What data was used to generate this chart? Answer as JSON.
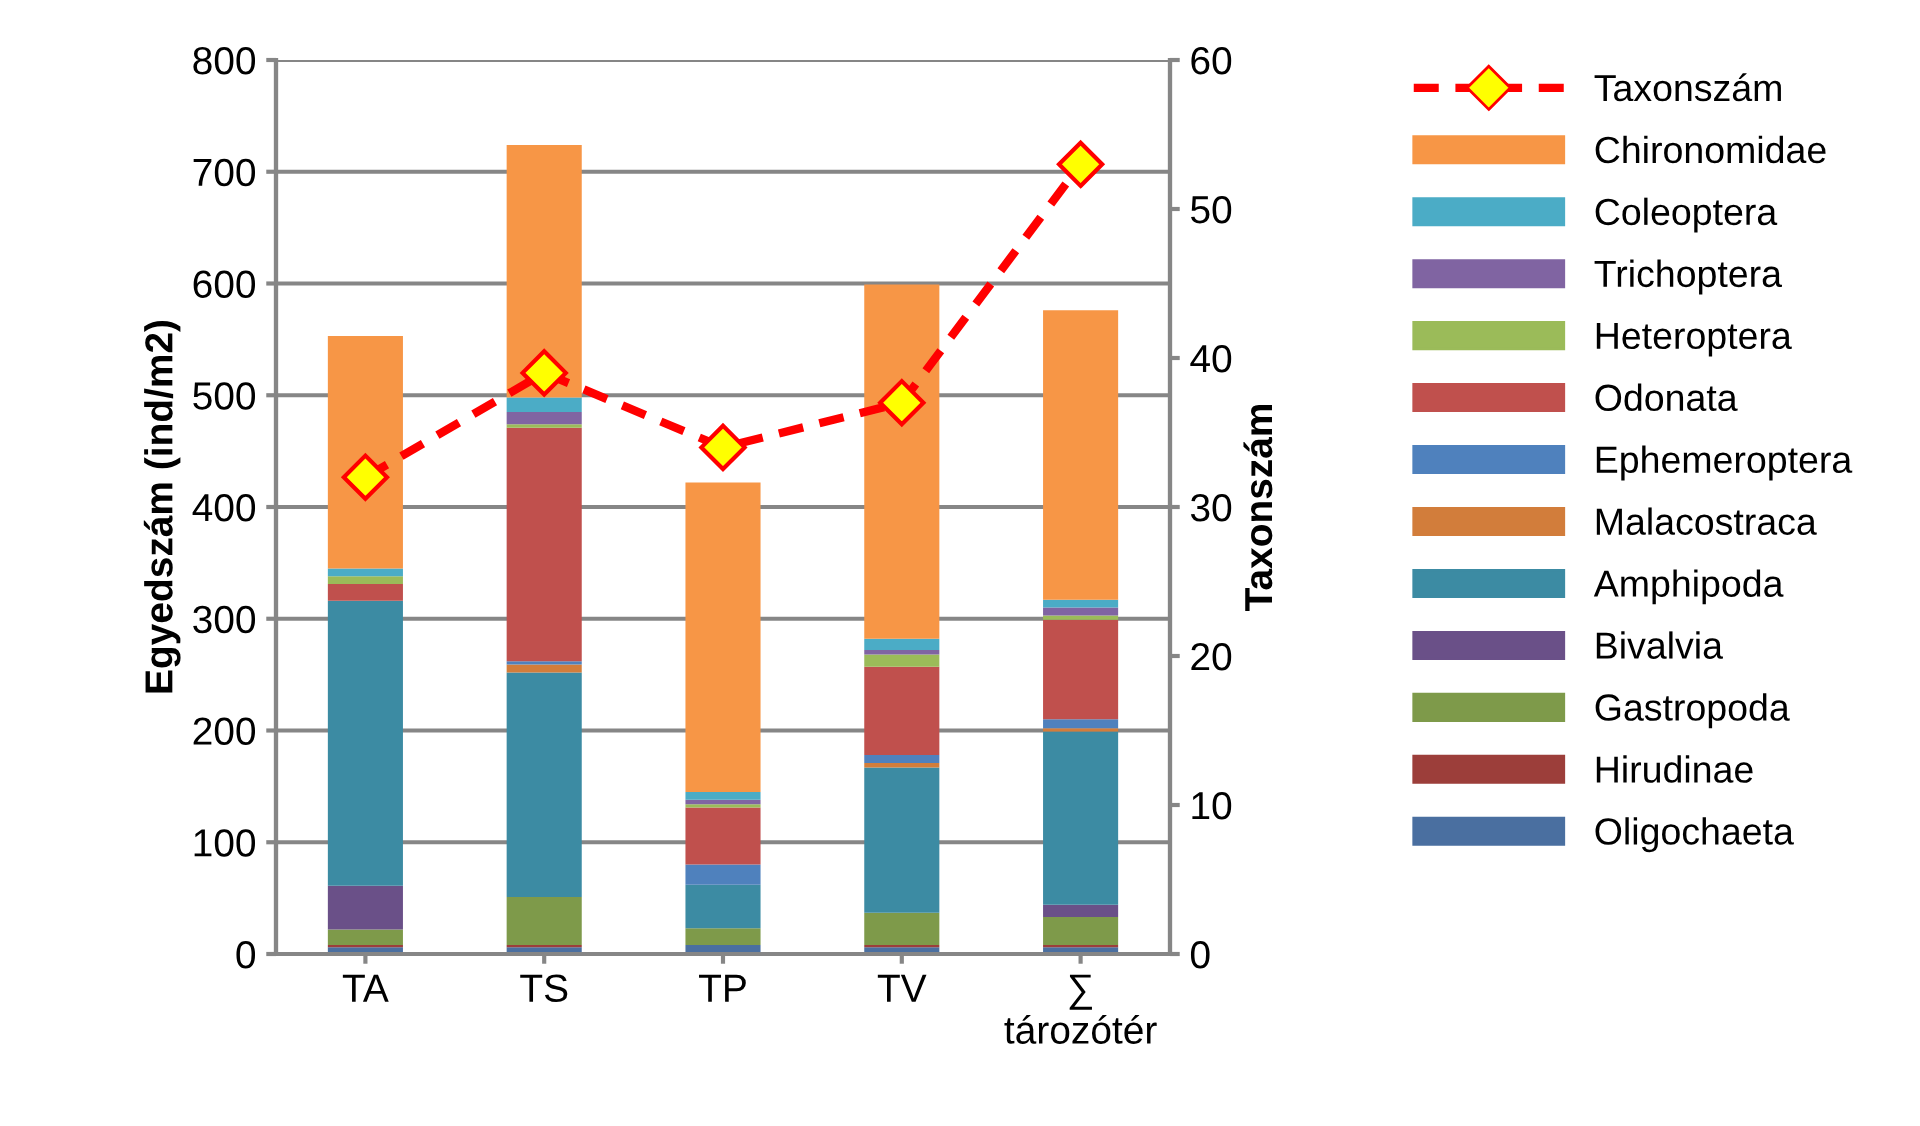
{
  "chart_data": {
    "type": "bar",
    "stacked": true,
    "ylabel": "Egyedszám (ind/m2)",
    "y2label": "Taxonszám",
    "categories": [
      "TA",
      "TS",
      "TP",
      "TV",
      "∑\ntározótér"
    ],
    "ylim": [
      0,
      800
    ],
    "yticks": [
      0,
      100,
      200,
      300,
      400,
      500,
      600,
      700,
      800
    ],
    "y2lim": [
      0,
      60
    ],
    "y2ticks": [
      0,
      10,
      20,
      30,
      40,
      50,
      60
    ],
    "grid": "y",
    "legend": "right",
    "series": [
      {
        "name": "Oligochaeta",
        "color": "#4a6fa0",
        "values": [
          6,
          6,
          8,
          6,
          6
        ]
      },
      {
        "name": "Hirudinae",
        "color": "#9c3e3a",
        "values": [
          2,
          2,
          0,
          2,
          2
        ]
      },
      {
        "name": "Gastropoda",
        "color": "#7e9a4a",
        "values": [
          14,
          43,
          15,
          29,
          25
        ]
      },
      {
        "name": "Bivalvia",
        "color": "#6a5088",
        "values": [
          39,
          0,
          0,
          0,
          11
        ]
      },
      {
        "name": "Amphipoda",
        "color": "#3c8ba3",
        "values": [
          255,
          201,
          39,
          130,
          155
        ]
      },
      {
        "name": "Malacostraca",
        "color": "#d27d3b",
        "values": [
          0,
          7,
          0,
          4,
          3
        ]
      },
      {
        "name": "Ephemeroptera",
        "color": "#4f81bd",
        "values": [
          0,
          3,
          18,
          7,
          8
        ]
      },
      {
        "name": "Odonata",
        "color": "#c0504d",
        "values": [
          15,
          209,
          51,
          79,
          89
        ]
      },
      {
        "name": "Heteroptera",
        "color": "#9bbb59",
        "values": [
          7,
          3,
          3,
          11,
          4
        ]
      },
      {
        "name": "Trichoptera",
        "color": "#8064a2",
        "values": [
          0,
          11,
          4,
          4,
          7
        ]
      },
      {
        "name": "Coleoptera",
        "color": "#4bacc6",
        "values": [
          7,
          13,
          7,
          10,
          7
        ]
      },
      {
        "name": "Chironomidae",
        "color": "#f79646",
        "values": [
          208,
          226,
          277,
          317,
          259
        ]
      },
      {
        "name": "Taxonszám",
        "type": "line",
        "axis": "y2",
        "color": "#ff0000",
        "marker": "diamond",
        "line_style": "dashed",
        "values": [
          32,
          39,
          34,
          37,
          53
        ]
      }
    ]
  }
}
